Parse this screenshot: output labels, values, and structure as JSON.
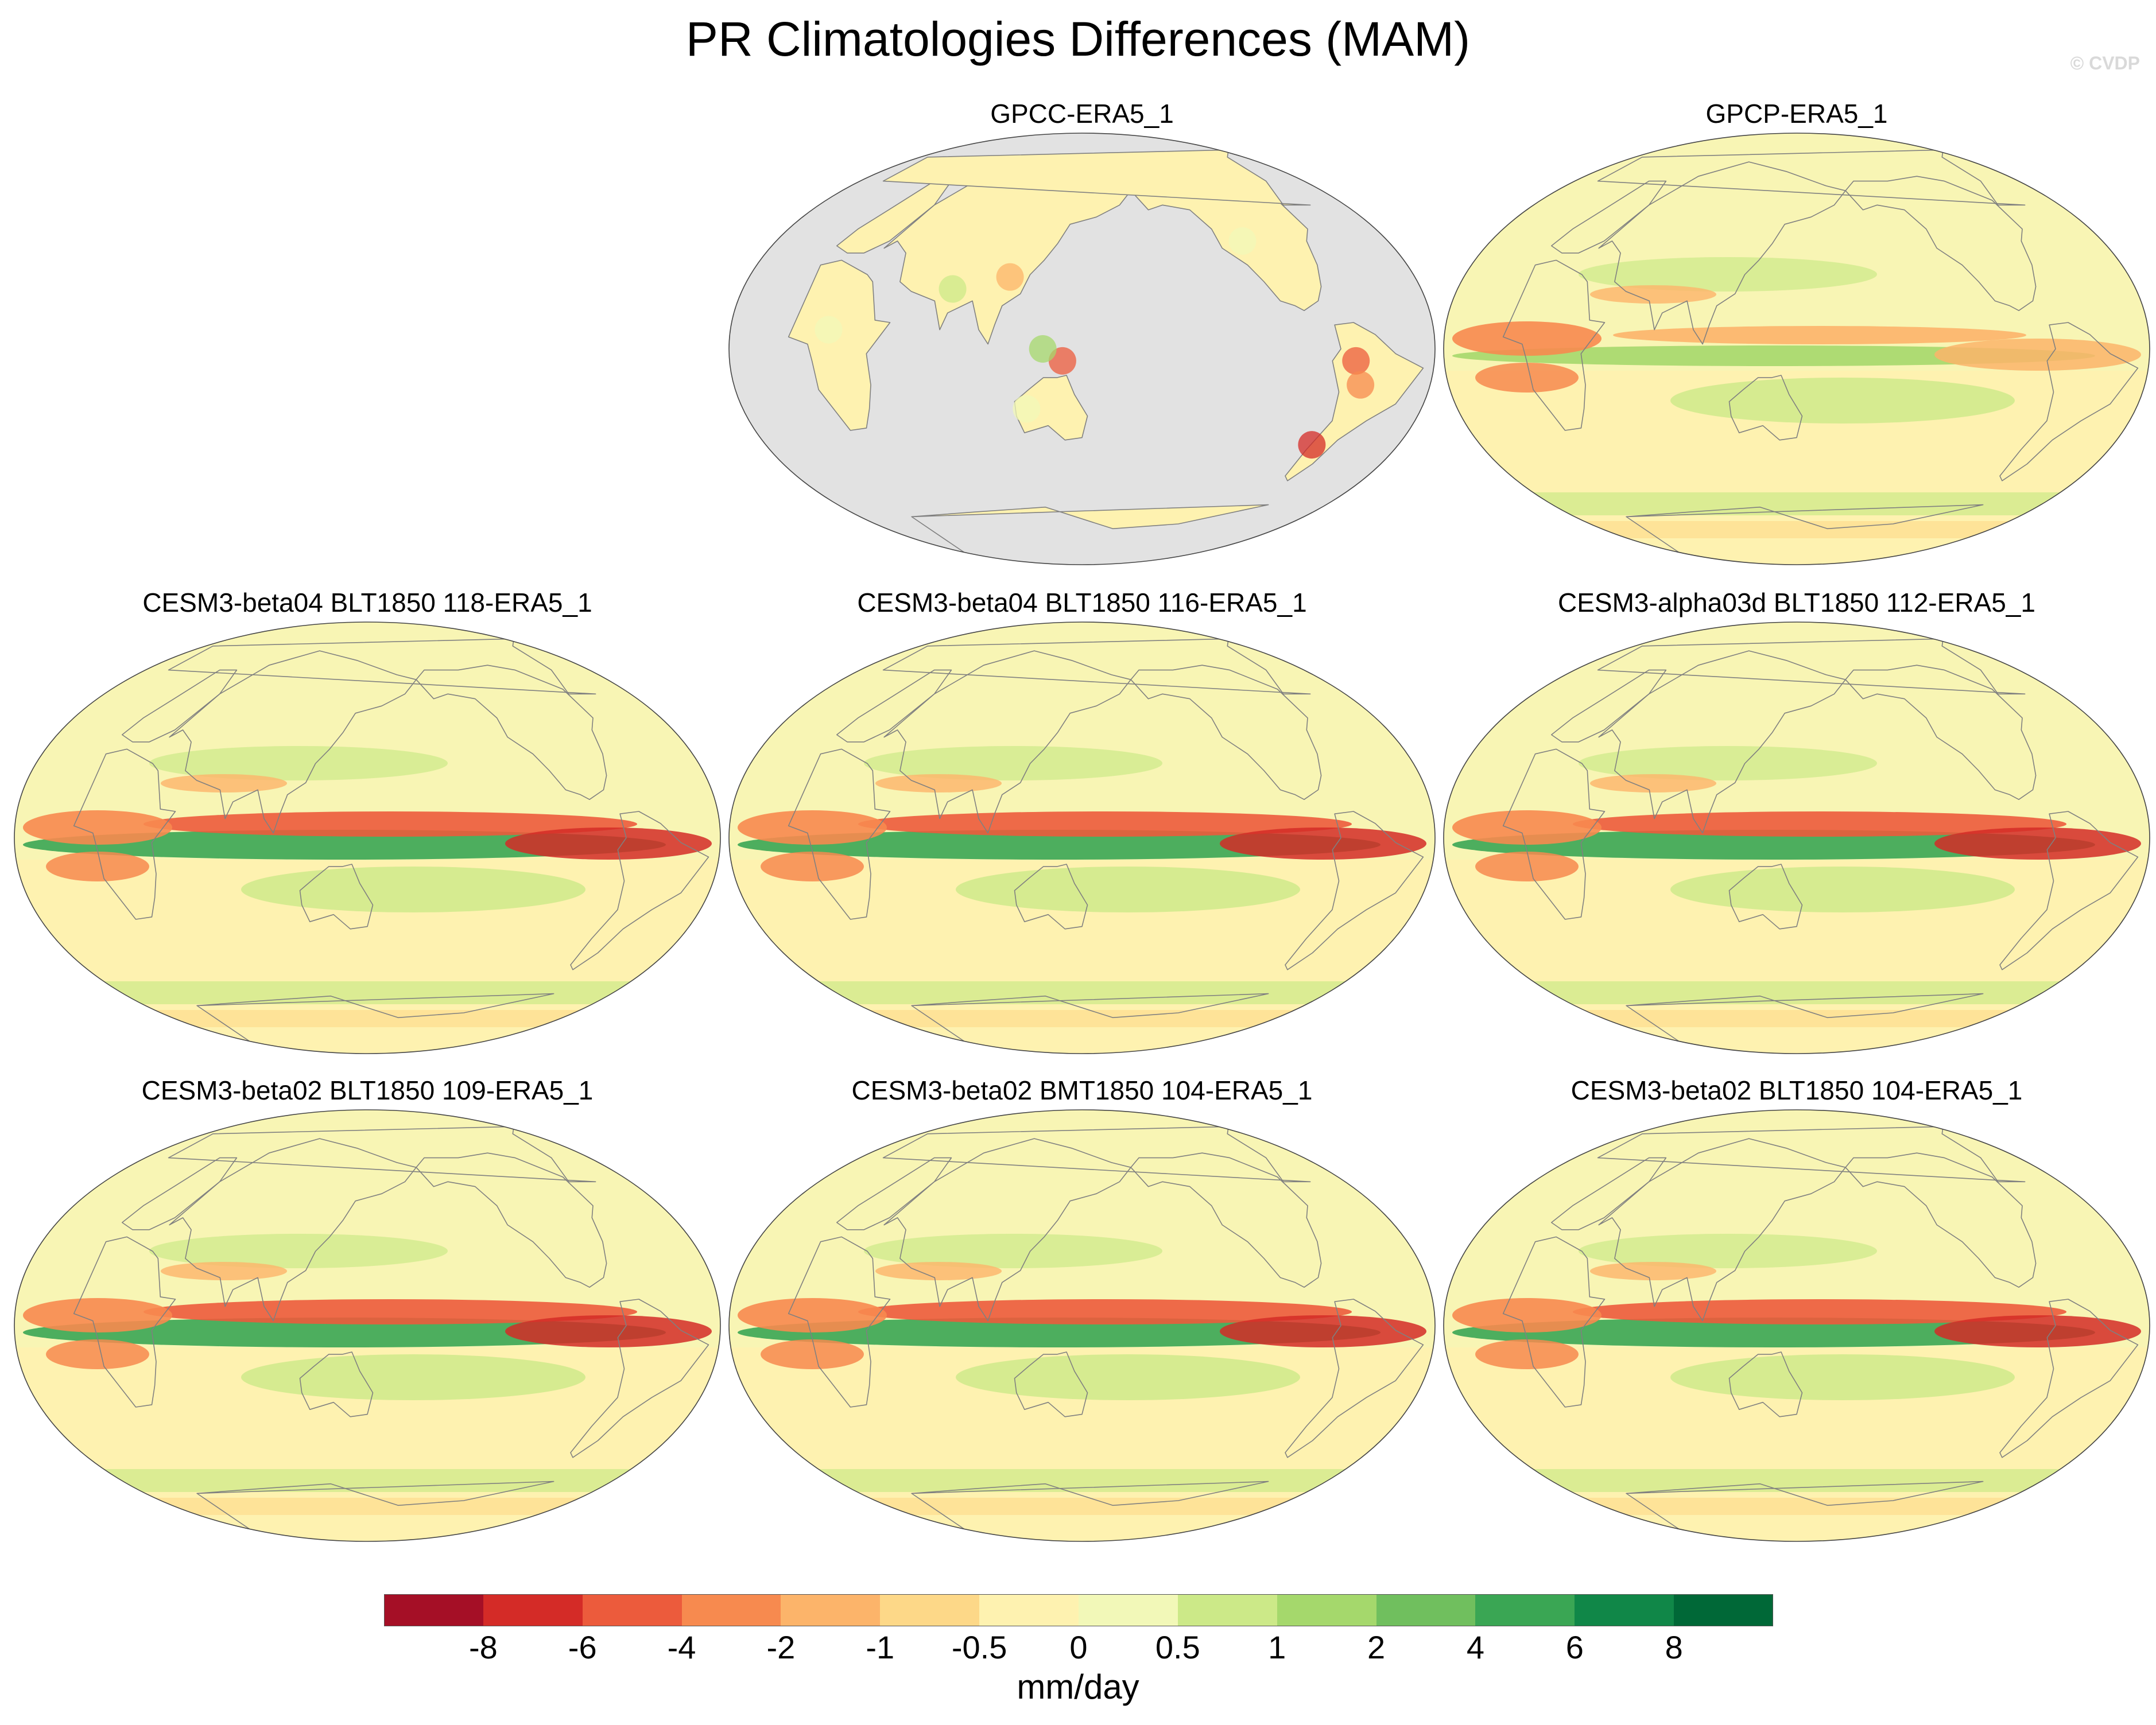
{
  "title": "PR Climatologies Differences (MAM)",
  "copyright": "© CVDP",
  "panels": [
    {
      "label": "GPCC-ERA5_1",
      "land_only": true
    },
    {
      "label": "GPCP-ERA5_1",
      "land_only": false
    },
    {
      "label": "CESM3-beta04 BLT1850 118-ERA5_1",
      "land_only": false
    },
    {
      "label": "CESM3-beta04 BLT1850 116-ERA5_1",
      "land_only": false
    },
    {
      "label": "CESM3-alpha03d BLT1850 112-ERA5_1",
      "land_only": false
    },
    {
      "label": "CESM3-beta02 BLT1850 109-ERA5_1",
      "land_only": false
    },
    {
      "label": "CESM3-beta02 BMT1850 104-ERA5_1",
      "land_only": false
    },
    {
      "label": "CESM3-beta02 BLT1850 104-ERA5_1",
      "land_only": false
    }
  ],
  "colorbar": {
    "units": "mm/day",
    "tick_labels": [
      "-8",
      "-6",
      "-4",
      "-2",
      "-1",
      "-0.5",
      "0",
      "0.5",
      "1",
      "2",
      "4",
      "6",
      "8"
    ],
    "colors": [
      "#a50f26",
      "#d42b27",
      "#ec5b3c",
      "#f78a4f",
      "#fcb46a",
      "#fdd888",
      "#fef2b0",
      "#f2f8b8",
      "#cce988",
      "#a5d86c",
      "#70bf5e",
      "#3aa654",
      "#108748",
      "#006837"
    ]
  },
  "colors": {
    "missing": "#e2e2e2",
    "coast": "#808080"
  }
}
